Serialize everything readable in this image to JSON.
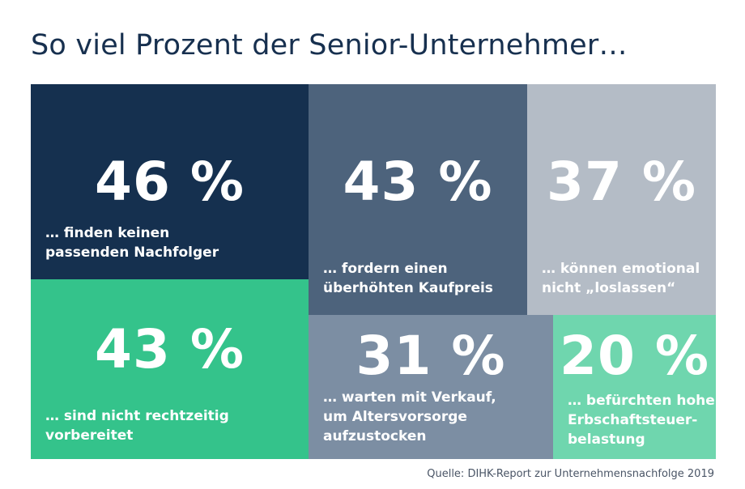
{
  "title": "So viel Prozent der Senior-Unternehmer…",
  "source": "Quelle: DIHK-Report zur Unternehmensnachfolge 2019",
  "chart_data": {
    "type": "treemap",
    "unit": "%",
    "items": [
      {
        "value": 46,
        "value_label": "46 %",
        "label_lines": [
          "… finden keinen",
          "passenden Nachfolger"
        ],
        "color": "#15304f"
      },
      {
        "value": 43,
        "value_label": "43 %",
        "label_lines": [
          "… fordern einen",
          "überhöhten Kaufpreis"
        ],
        "color": "#4d637c"
      },
      {
        "value": 37,
        "value_label": "37 %",
        "label_lines": [
          "… können emotional",
          "nicht „loslassen“"
        ],
        "color": "#b4bcc6"
      },
      {
        "value": 43,
        "value_label": "43 %",
        "label_lines": [
          "… sind nicht rechtzeitig",
          "vorbereitet"
        ],
        "color": "#34c38b"
      },
      {
        "value": 31,
        "value_label": "31 %",
        "label_lines": [
          "… warten mit Verkauf,",
          "um Altersvorsorge",
          "aufzustocken"
        ],
        "color": "#7c8ea3"
      },
      {
        "value": 20,
        "value_label": "20 %",
        "label_lines": [
          "… befürchten hohe",
          "Erbschaftsteuer-",
          "belastung"
        ],
        "color": "#6fd6ae"
      }
    ]
  }
}
